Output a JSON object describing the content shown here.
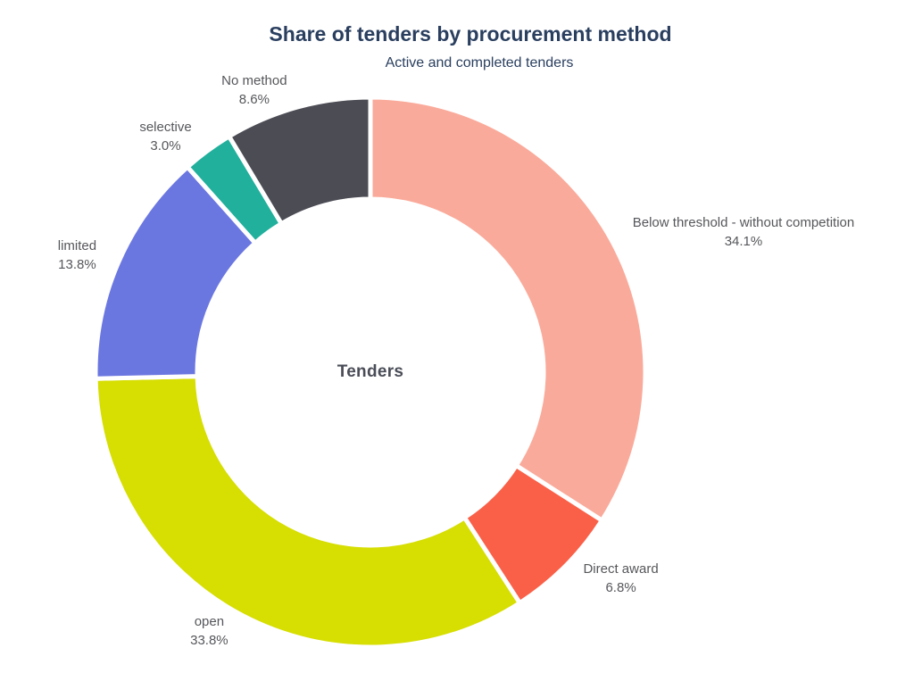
{
  "header": {
    "title": "Share of tenders by procurement method",
    "subtitle": "Active and completed tenders"
  },
  "chart_data": {
    "type": "pie",
    "subtype": "donut",
    "hole_ratio": 0.63,
    "direction": "clockwise",
    "start_angle_deg": 0,
    "center_label": "Tenders",
    "slices": [
      {
        "label": "Below threshold - without competition",
        "value_pct": 34.1,
        "color": "#FAAA9A"
      },
      {
        "label": "Direct award",
        "value_pct": 6.8,
        "color": "#FA6048"
      },
      {
        "label": "open",
        "value_pct": 33.8,
        "color": "#D6DE02"
      },
      {
        "label": "limited",
        "value_pct": 13.8,
        "color": "#6B77E0"
      },
      {
        "label": "selective",
        "value_pct": 3.0,
        "color": "#20B09C"
      },
      {
        "label": "No method",
        "value_pct": 8.6,
        "color": "#4C4C55"
      }
    ],
    "colors": {
      "title": "#2A3F5F",
      "subtitle": "#2A3F5F",
      "slice_label_text": "#56575B",
      "center_label_text": "#4A4D57",
      "slice_border": "#FFFFFF",
      "background": "#FFFFFF"
    }
  }
}
